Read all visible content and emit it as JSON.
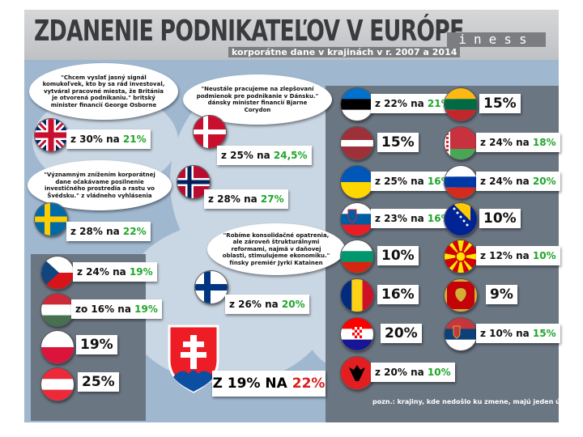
{
  "header": {
    "title": "ZDANENIE PODNIKATEĽOV V EURÓPE",
    "subtitle": "korporátne dane v krajinách v r. 2007 a 2014",
    "logo": "iness"
  },
  "quotes": {
    "uk": "\"Chcem vyslať jasný signál komukoľvek, kto by sa rád investoval, vytváral pracovné miesta, že Británia je otvorená podnikaniu.\" britský minister financií George Osborne",
    "denmark": "\"Neustále pracujeme na zlepšovaní podmienok pre podnikanie v Dánsku.\" dánsky minister financií Bjarne Corydon",
    "sweden": "\"Významným znížením korporátnej dane očakávame posilnenie investičného prostredia a rastu vo Švédsku.\" z vládneho vyhlásenia",
    "finland": "\"Robíme konsolidačné opatrenia, ale zároveň štrukturálnymi reformami, najmä v daňovej oblasti, stimulujeme ekonomiku.\" fínsky premiér Jyrki Katainen"
  },
  "countries": [
    {
      "id": "uk",
      "from": "z 30% na ",
      "to": "21%"
    },
    {
      "id": "denmark",
      "from": "z 25% na ",
      "to": "24,5%"
    },
    {
      "id": "norway",
      "from": "z 28% na ",
      "to": "27%"
    },
    {
      "id": "sweden",
      "from": "z 28% na ",
      "to": "22%"
    },
    {
      "id": "finland",
      "from": "z 26% na ",
      "to": "20%"
    },
    {
      "id": "czech",
      "from": "z 24% na ",
      "to": "19%"
    },
    {
      "id": "hungary",
      "from": "zo 16% na ",
      "to": "19%"
    },
    {
      "id": "poland",
      "from": "19%",
      "to": ""
    },
    {
      "id": "austria",
      "from": "25%",
      "to": ""
    },
    {
      "id": "estonia",
      "from": "z 22% na ",
      "to": "21%"
    },
    {
      "id": "lithuania",
      "from": "15%",
      "to": ""
    },
    {
      "id": "latvia",
      "from": "15%",
      "to": ""
    },
    {
      "id": "belarus",
      "from": "z 24% na ",
      "to": "18%"
    },
    {
      "id": "ukraine",
      "from": "z 25% na ",
      "to": "16%"
    },
    {
      "id": "russia",
      "from": "z 24% na ",
      "to": "20%"
    },
    {
      "id": "slovenia",
      "from": "z 23% na ",
      "to": "16%"
    },
    {
      "id": "bosnia",
      "from": "10%",
      "to": ""
    },
    {
      "id": "bulgaria",
      "from": "10%",
      "to": ""
    },
    {
      "id": "macedonia",
      "from": "z 12% na ",
      "to": "10%"
    },
    {
      "id": "romania",
      "from": "16%",
      "to": ""
    },
    {
      "id": "montenegro",
      "from": "9%",
      "to": ""
    },
    {
      "id": "croatia",
      "from": "20%",
      "to": ""
    },
    {
      "id": "serbia",
      "from": "z 10% na ",
      "to": "15%"
    },
    {
      "id": "albania",
      "from": "z 20% na ",
      "to": "10%"
    }
  ],
  "slovakia": {
    "from": "Z 19% NA ",
    "to": "22%"
  },
  "note": "pozn.: krajiny, kde nedošlo ku zmene, majú jeden údaj",
  "colors": {
    "decrease": "#1ea62a",
    "increase": "#d81e1e",
    "panel": "#6b7683",
    "sea": "#9fb7cf"
  }
}
